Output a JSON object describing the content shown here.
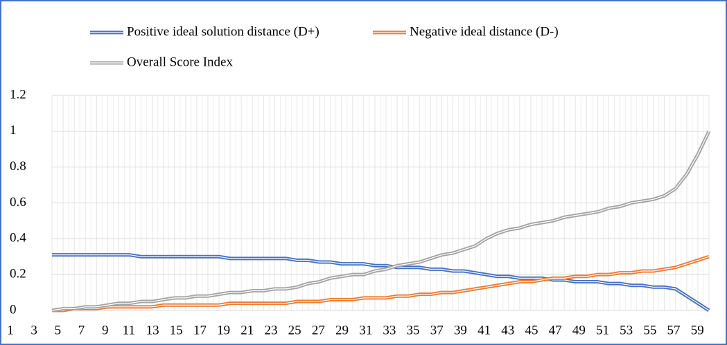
{
  "chart_data": {
    "type": "line",
    "categories": [
      1,
      null,
      3,
      null,
      5,
      null,
      7,
      null,
      9,
      null,
      11,
      null,
      13,
      null,
      15,
      null,
      17,
      null,
      19,
      null,
      21,
      null,
      23,
      null,
      25,
      null,
      27,
      null,
      29,
      null,
      31,
      null,
      33,
      null,
      35,
      null,
      37,
      null,
      39,
      null,
      41,
      null,
      43,
      null,
      45,
      null,
      47,
      null,
      49,
      null,
      51,
      null,
      53,
      null,
      55,
      null,
      57,
      null,
      59,
      null
    ],
    "series": [
      {
        "name": "Positive ideal solution distance (D+)",
        "color": "#4472c4",
        "values": [
          0.31,
          0.31,
          0.31,
          0.31,
          0.31,
          0.31,
          0.31,
          0.31,
          0.3,
          0.3,
          0.3,
          0.3,
          0.3,
          0.3,
          0.3,
          0.3,
          0.29,
          0.29,
          0.29,
          0.29,
          0.29,
          0.29,
          0.28,
          0.28,
          0.27,
          0.27,
          0.26,
          0.26,
          0.26,
          0.25,
          0.25,
          0.24,
          0.24,
          0.24,
          0.23,
          0.23,
          0.22,
          0.22,
          0.21,
          0.2,
          0.19,
          0.19,
          0.18,
          0.18,
          0.18,
          0.17,
          0.17,
          0.16,
          0.16,
          0.16,
          0.15,
          0.15,
          0.14,
          0.14,
          0.13,
          0.13,
          0.12,
          0.08,
          0.04,
          0.0
        ]
      },
      {
        "name": "Negative ideal distance (D-)",
        "color": "#ed7d31",
        "values": [
          0.0,
          0.0,
          0.01,
          0.01,
          0.01,
          0.02,
          0.02,
          0.02,
          0.02,
          0.02,
          0.03,
          0.03,
          0.03,
          0.03,
          0.03,
          0.03,
          0.04,
          0.04,
          0.04,
          0.04,
          0.04,
          0.04,
          0.05,
          0.05,
          0.05,
          0.06,
          0.06,
          0.06,
          0.07,
          0.07,
          0.07,
          0.08,
          0.08,
          0.09,
          0.09,
          0.1,
          0.1,
          0.11,
          0.12,
          0.13,
          0.14,
          0.15,
          0.16,
          0.16,
          0.17,
          0.18,
          0.18,
          0.19,
          0.19,
          0.2,
          0.2,
          0.21,
          0.21,
          0.22,
          0.22,
          0.23,
          0.24,
          0.26,
          0.28,
          0.3
        ]
      },
      {
        "name": "Overall Score Index",
        "color": "#a5a5a5",
        "values": [
          0.0,
          0.01,
          0.01,
          0.02,
          0.02,
          0.03,
          0.04,
          0.04,
          0.05,
          0.05,
          0.06,
          0.07,
          0.07,
          0.08,
          0.08,
          0.09,
          0.1,
          0.1,
          0.11,
          0.11,
          0.12,
          0.12,
          0.13,
          0.15,
          0.16,
          0.18,
          0.19,
          0.2,
          0.2,
          0.22,
          0.23,
          0.25,
          0.26,
          0.27,
          0.29,
          0.31,
          0.32,
          0.34,
          0.36,
          0.4,
          0.43,
          0.45,
          0.46,
          0.48,
          0.49,
          0.5,
          0.52,
          0.53,
          0.54,
          0.55,
          0.57,
          0.58,
          0.6,
          0.61,
          0.62,
          0.64,
          0.68,
          0.76,
          0.87,
          1.0
        ]
      }
    ],
    "ylim": [
      0,
      1.2
    ],
    "yticks": [
      0,
      0.2,
      0.4,
      0.6,
      0.8,
      1,
      1.2
    ],
    "grid": true,
    "legend": "top"
  }
}
